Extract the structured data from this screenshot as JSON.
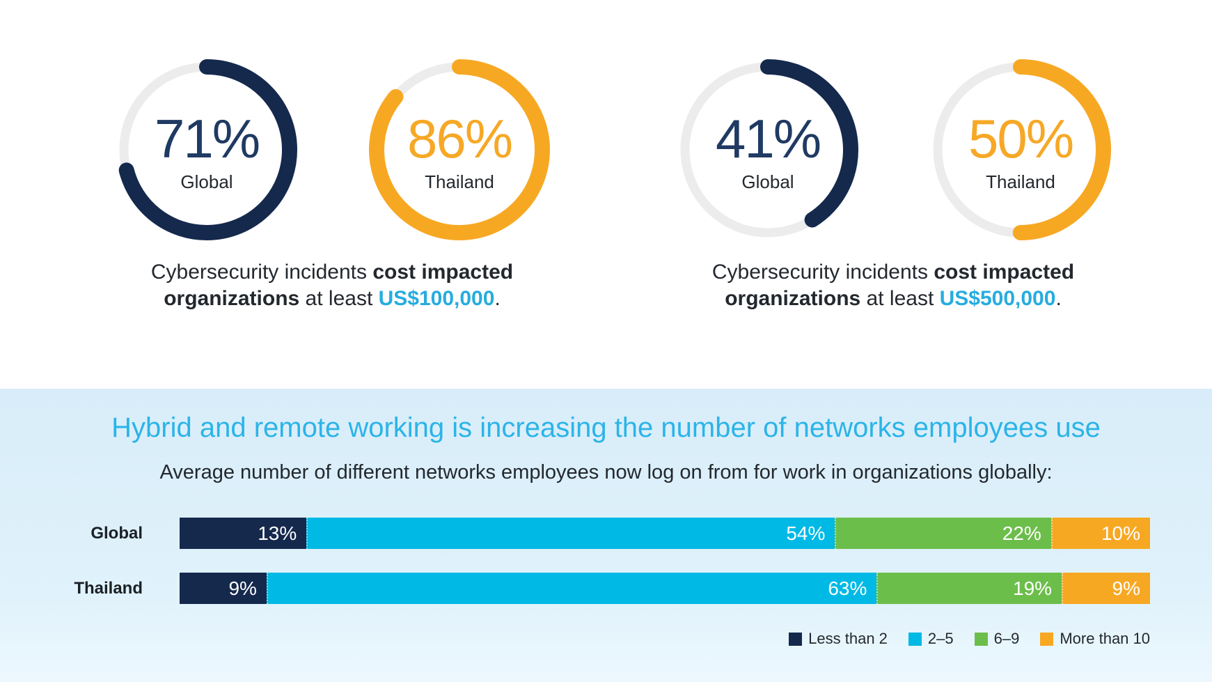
{
  "colors": {
    "navy": "#15294D",
    "cyan": "#00B9E5",
    "green": "#6CBE4B",
    "orange": "#F7A823",
    "track_gray": "#ECECEC",
    "donut_value_navy": "#1F3A63",
    "donut_value_orange": "#F6A826",
    "title_cyan": "#2BB4E8",
    "amount_cyan": "#26ACDF",
    "text_dark": "#23282E",
    "panel_bg": "#DCEFFA"
  },
  "chart_data": [
    {
      "type": "donut",
      "unit": "%",
      "donuts": [
        {
          "label": "Global",
          "value": 71,
          "display": "71%",
          "color": "#15294D"
        },
        {
          "label": "Thailand",
          "value": 86,
          "display": "86%",
          "color": "#F7A823"
        }
      ],
      "caption": {
        "normal1": "Cybersecurity incidents ",
        "bold": "cost impacted organizations",
        "normal2": " at least ",
        "amount": "US$100,000",
        "period": "."
      }
    },
    {
      "type": "donut",
      "unit": "%",
      "donuts": [
        {
          "label": "Global",
          "value": 41,
          "display": "41%",
          "color": "#15294D"
        },
        {
          "label": "Thailand",
          "value": 50,
          "display": "50%",
          "color": "#F7A823"
        }
      ],
      "caption": {
        "normal1": "Cybersecurity incidents ",
        "bold": "cost impacted organizations",
        "normal2": " at least ",
        "amount": "US$500,000",
        "period": "."
      }
    },
    {
      "type": "bar",
      "stacked": true,
      "orientation": "horizontal",
      "title": "Hybrid and remote working is increasing the number of networks employees use",
      "subtitle": "Average number of different networks employees now log on from for work in organizations globally:",
      "categories": [
        "Global",
        "Thailand"
      ],
      "series": [
        {
          "name": "Less than 2",
          "color": "#15294D",
          "values": [
            13,
            9
          ]
        },
        {
          "name": "2–5",
          "color": "#00B9E5",
          "values": [
            54,
            63
          ]
        },
        {
          "name": "6–9",
          "color": "#6CBE4B",
          "values": [
            22,
            19
          ]
        },
        {
          "name": "More than 10",
          "color": "#F7A823",
          "values": [
            10,
            9
          ]
        }
      ],
      "value_labels": [
        [
          "13%",
          "54%",
          "22%",
          "10%"
        ],
        [
          "9%",
          "63%",
          "19%",
          "9%"
        ]
      ],
      "unit": "%",
      "xlim": [
        0,
        100
      ],
      "grid": false,
      "legend_position": "bottom-right"
    }
  ]
}
